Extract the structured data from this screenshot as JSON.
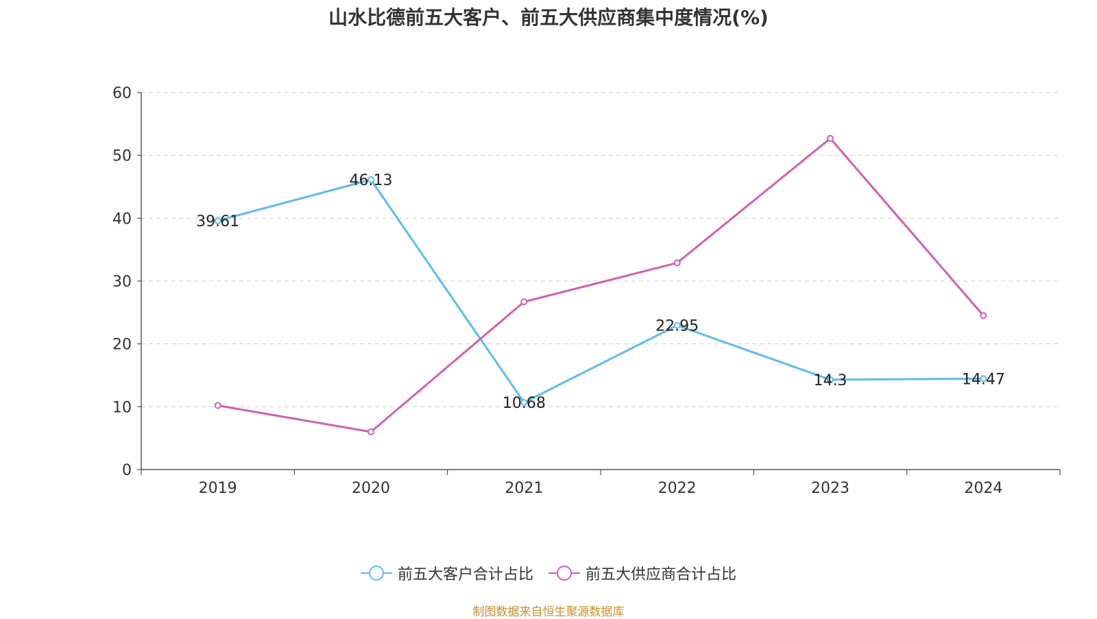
{
  "chart_data": {
    "type": "line",
    "title": "山水比德前五大客户、前五大供应商集中度情况(%)",
    "categories": [
      "2019",
      "2020",
      "2021",
      "2022",
      "2023",
      "2024"
    ],
    "series": [
      {
        "name": "前五大客户合计占比",
        "color": "#5bbcf0",
        "values": [
          39.61,
          46.13,
          10.68,
          22.95,
          14.3,
          14.47
        ],
        "labels": [
          "39.61",
          "46.13",
          "10.68",
          "22.95",
          "14.3",
          "14.47"
        ],
        "show_labels": true
      },
      {
        "name": "前五大供应商合计占比",
        "color": "#d45faa",
        "values": [
          10.2,
          6.0,
          26.7,
          32.9,
          52.7,
          24.5
        ],
        "show_labels": false
      }
    ],
    "y_ticks": [
      "0",
      "10",
      "20",
      "30",
      "40",
      "50",
      "60"
    ],
    "ylim": [
      0,
      60
    ],
    "grid": true,
    "legend_position": "bottom-center"
  },
  "source": "制图数据来自恒生聚源数据库"
}
